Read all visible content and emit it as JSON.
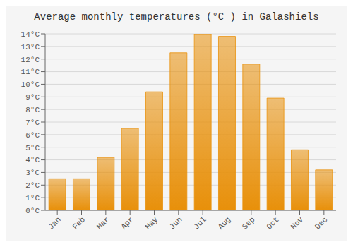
{
  "chart_data": {
    "type": "bar",
    "title": "Average monthly temperatures (°C ) in Galashiels",
    "categories": [
      "Jan",
      "Feb",
      "Mar",
      "Apr",
      "May",
      "Jun",
      "Jul",
      "Aug",
      "Sep",
      "Oct",
      "Nov",
      "Dec"
    ],
    "values": [
      2.5,
      2.5,
      4.2,
      6.5,
      9.4,
      12.5,
      14.0,
      13.8,
      11.6,
      8.9,
      4.8,
      3.2
    ],
    "color": "#E8900A",
    "ylim": [
      0,
      14
    ],
    "yticks": [
      {
        "value": 0,
        "label": "0°C"
      },
      {
        "value": 1,
        "label": "1°C"
      },
      {
        "value": 2,
        "label": "2°C"
      },
      {
        "value": 3,
        "label": "3°C"
      },
      {
        "value": 4,
        "label": "4°C"
      },
      {
        "value": 5,
        "label": "5°C"
      },
      {
        "value": 6,
        "label": "6°C"
      },
      {
        "value": 7,
        "label": "7°C"
      },
      {
        "value": 8,
        "label": "8°C"
      },
      {
        "value": 9,
        "label": "9°C"
      },
      {
        "value": 10,
        "label": "10°C"
      },
      {
        "value": 11,
        "label": "11°C"
      },
      {
        "value": 12,
        "label": "12°C"
      },
      {
        "value": 13,
        "label": "13°C"
      },
      {
        "value": 14,
        "label": "14°C"
      }
    ],
    "grid": true
  }
}
